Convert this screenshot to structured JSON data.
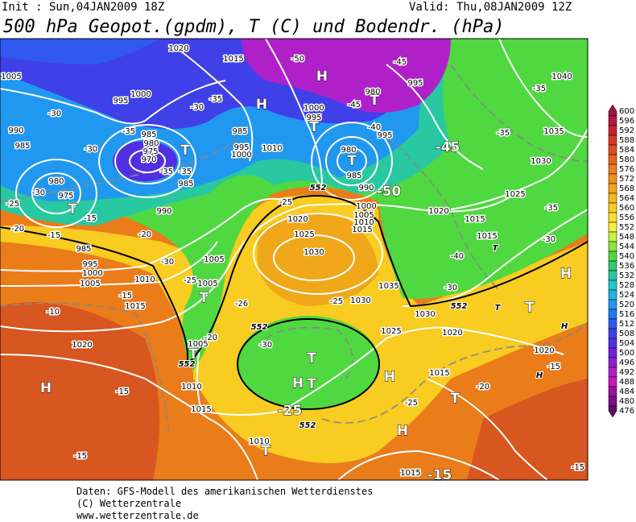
{
  "header": {
    "init": "Init : Sun,04JAN2009 18Z",
    "valid": "Valid: Thu,08JAN2009  12Z",
    "title": "500 hPa Geopot.(gpdm), T (C) und Bodendr. (hPa)"
  },
  "map_labels": [
    "1020",
    "1015",
    "1005",
    "995",
    "1000",
    "990",
    "985",
    "980",
    "975",
    "985",
    "995",
    "1000",
    "1005",
    "1010",
    "1015",
    "1005",
    "1005",
    "1020",
    "1005",
    "1010",
    "1015",
    "1010",
    "1015",
    "1020",
    "1025",
    "1030",
    "1030",
    "1035",
    "1030",
    "1025",
    "1020",
    "1015",
    "1020",
    "1025",
    "1030",
    "1035",
    "1040",
    "1020",
    "1015",
    "1015",
    "990",
    "985",
    "980",
    "985",
    "990",
    "1000",
    "1005",
    "1010",
    "1015",
    "980",
    "995",
    "995",
    "1000",
    "995",
    "1010",
    "1000",
    "995",
    "985",
    "985",
    "980",
    "975",
    "970",
    "-50",
    "-45",
    "-45",
    "-40",
    "-35",
    "-35",
    "-35",
    "-30",
    "-30",
    "-35",
    "-30",
    "-30",
    "-35",
    "-35",
    "-35",
    "-30",
    "-15",
    "-25",
    "-20",
    "-15",
    "-20",
    "-30",
    "-25",
    "-15",
    "-10",
    "-15",
    "-15",
    "-25",
    "-26",
    "-20",
    "-30",
    "-25",
    "-30",
    "-40",
    "-20",
    "-25",
    "-15",
    "-15",
    "-15",
    "-25",
    "-50",
    "-45",
    "H",
    "T",
    "H",
    "T",
    "H",
    "T",
    "T",
    "T",
    "T",
    "T",
    "H",
    "T",
    "T",
    "H",
    "T",
    "H",
    "T",
    "H",
    "T",
    "H",
    "H",
    "T",
    "T",
    "552",
    "552",
    "552",
    "552",
    "552"
  ],
  "colorbar": {
    "values": [
      600,
      596,
      592,
      588,
      584,
      580,
      576,
      572,
      568,
      564,
      560,
      556,
      552,
      548,
      544,
      540,
      536,
      532,
      528,
      524,
      520,
      516,
      512,
      508,
      504,
      500,
      496,
      492,
      488,
      484,
      480,
      476
    ],
    "colors": [
      "#a0104a",
      "#b8163c",
      "#c8232c",
      "#d43a26",
      "#dc5020",
      "#e4661c",
      "#ea7c1a",
      "#f09018",
      "#f4a41a",
      "#f8b81c",
      "#fccc20",
      "#fde030",
      "#f4f040",
      "#c8f040",
      "#90e440",
      "#50d840",
      "#30c870",
      "#28c8a0",
      "#20c8c8",
      "#20b4e0",
      "#2098f0",
      "#2078f0",
      "#3058f0",
      "#4040e8",
      "#5030e0",
      "#7020d8",
      "#9020d0",
      "#b020c8",
      "#c818c0",
      "#a010a0",
      "#801080",
      "#601060"
    ]
  },
  "footer": [
    "Daten: GFS-Modell des amerikanischen Wetterdienstes",
    "(C) Wetterzentrale",
    "www.wetterzentrale.de"
  ]
}
